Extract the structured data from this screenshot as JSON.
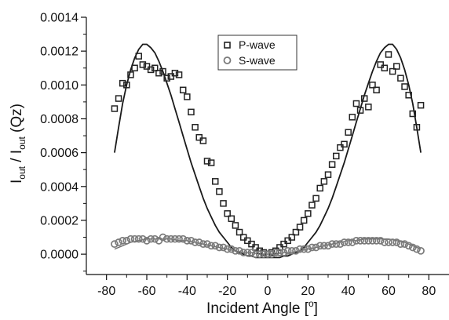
{
  "chart_data": {
    "type": "scatter",
    "xlabel": "Incident Angle [°]",
    "ylabel": "I_out / I_out (Qz)",
    "ylabel_parts": {
      "base1": "I",
      "sub1": "out",
      "mid": " / I",
      "sub2": "out",
      "tail": " (Qz)"
    },
    "xlabel_parts": {
      "main": "Incident Angle [",
      "sup": "o",
      "close": "]"
    },
    "xlim": [
      -90,
      90
    ],
    "ylim": [
      -0.00012,
      0.0014
    ],
    "x_ticks": [
      -80,
      -60,
      -40,
      -20,
      0,
      20,
      40,
      60,
      80
    ],
    "x_tick_labels": [
      "-80",
      "-60",
      "-40",
      "-20",
      "0",
      "20",
      "40",
      "60",
      "80"
    ],
    "y_ticks": [
      0.0,
      0.0002,
      0.0004,
      0.0006,
      0.0008,
      0.001,
      0.0012,
      0.0014
    ],
    "y_tick_labels": [
      "0.0000",
      "0.0002",
      "0.0004",
      "0.0006",
      "0.0008",
      "0.0010",
      "0.0012",
      "0.0014"
    ],
    "grid": false,
    "legend_position": "top-center",
    "series": [
      {
        "name": "P-wave",
        "kind": "points",
        "marker": "square",
        "points": [
          [
            -76,
            0.00086
          ],
          [
            -74,
            0.00092
          ],
          [
            -72,
            0.00101
          ],
          [
            -70,
            0.001
          ],
          [
            -68,
            0.00106
          ],
          [
            -66,
            0.0011
          ],
          [
            -64,
            0.00117
          ],
          [
            -62,
            0.00112
          ],
          [
            -60,
            0.00111
          ],
          [
            -58,
            0.00109
          ],
          [
            -56,
            0.0011
          ],
          [
            -54,
            0.00107
          ],
          [
            -52,
            0.00108
          ],
          [
            -50,
            0.00104
          ],
          [
            -48,
            0.00105
          ],
          [
            -46,
            0.00107
          ],
          [
            -44,
            0.00106
          ],
          [
            -42,
            0.00097
          ],
          [
            -40,
            0.00093
          ],
          [
            -38,
            0.00084
          ],
          [
            -36,
            0.00075
          ],
          [
            -34,
            0.00069
          ],
          [
            -32,
            0.00067
          ],
          [
            -30,
            0.00055
          ],
          [
            -28,
            0.00054
          ],
          [
            -26,
            0.00043
          ],
          [
            -24,
            0.00037
          ],
          [
            -22,
            0.0003
          ],
          [
            -20,
            0.00024
          ],
          [
            -18,
            0.00021
          ],
          [
            -16,
            0.00017
          ],
          [
            -14,
            0.00013
          ],
          [
            -12,
            0.0001
          ],
          [
            -10,
            8e-05
          ],
          [
            -8,
            6e-05
          ],
          [
            -6,
            4e-05
          ],
          [
            -4,
            2e-05
          ],
          [
            -2,
            1e-05
          ],
          [
            0,
            0.0
          ],
          [
            2,
            1e-05
          ],
          [
            4,
            2e-05
          ],
          [
            6,
            4e-05
          ],
          [
            8,
            6e-05
          ],
          [
            10,
            8e-05
          ],
          [
            12,
            0.0001
          ],
          [
            14,
            0.00013
          ],
          [
            16,
            0.00016
          ],
          [
            18,
            0.0002
          ],
          [
            20,
            0.00024
          ],
          [
            22,
            0.00029
          ],
          [
            24,
            0.00033
          ],
          [
            26,
            0.00039
          ],
          [
            28,
            0.00043
          ],
          [
            30,
            0.00047
          ],
          [
            32,
            0.00053
          ],
          [
            34,
            0.00058
          ],
          [
            36,
            0.00063
          ],
          [
            38,
            0.00065
          ],
          [
            40,
            0.00072
          ],
          [
            42,
            0.00081
          ],
          [
            44,
            0.00089
          ],
          [
            46,
            0.00085
          ],
          [
            48,
            0.00092
          ],
          [
            50,
            0.00087
          ],
          [
            52,
            0.001
          ],
          [
            54,
            0.00097
          ],
          [
            56,
            0.00112
          ],
          [
            58,
            0.0011
          ],
          [
            60,
            0.00118
          ],
          [
            62,
            0.00108
          ],
          [
            64,
            0.00111
          ],
          [
            66,
            0.00104
          ],
          [
            68,
            0.00099
          ],
          [
            70,
            0.00094
          ],
          [
            72,
            0.00083
          ],
          [
            74,
            0.00075
          ],
          [
            76,
            0.00088
          ]
        ]
      },
      {
        "name": "S-wave",
        "kind": "points",
        "marker": "circle",
        "points": [
          [
            -76,
            6e-05
          ],
          [
            -74,
            7e-05
          ],
          [
            -72,
            8e-05
          ],
          [
            -70,
            8e-05
          ],
          [
            -68,
            9e-05
          ],
          [
            -66,
            9e-05
          ],
          [
            -64,
            9e-05
          ],
          [
            -62,
            9e-05
          ],
          [
            -60,
            8e-05
          ],
          [
            -58,
            9e-05
          ],
          [
            -56,
            9e-05
          ],
          [
            -54,
            8e-05
          ],
          [
            -52,
            0.0001
          ],
          [
            -50,
            9e-05
          ],
          [
            -48,
            9e-05
          ],
          [
            -46,
            9e-05
          ],
          [
            -44,
            9e-05
          ],
          [
            -42,
            9e-05
          ],
          [
            -40,
            8e-05
          ],
          [
            -38,
            8e-05
          ],
          [
            -36,
            7e-05
          ],
          [
            -34,
            7e-05
          ],
          [
            -32,
            6e-05
          ],
          [
            -30,
            6e-05
          ],
          [
            -28,
            5e-05
          ],
          [
            -26,
            5e-05
          ],
          [
            -24,
            4e-05
          ],
          [
            -22,
            4e-05
          ],
          [
            -20,
            3e-05
          ],
          [
            -18,
            3e-05
          ],
          [
            -16,
            2e-05
          ],
          [
            -14,
            2e-05
          ],
          [
            -12,
            1e-05
          ],
          [
            -10,
            1e-05
          ],
          [
            -8,
            1e-05
          ],
          [
            -6,
            0.0
          ],
          [
            -4,
            0.0
          ],
          [
            -2,
            0.0
          ],
          [
            0,
            0.0
          ],
          [
            2,
            0.0
          ],
          [
            4,
            1e-05
          ],
          [
            6,
            1e-05
          ],
          [
            8,
            1e-05
          ],
          [
            10,
            2e-05
          ],
          [
            12,
            2e-05
          ],
          [
            14,
            2e-05
          ],
          [
            16,
            3e-05
          ],
          [
            18,
            3e-05
          ],
          [
            20,
            3e-05
          ],
          [
            22,
            4e-05
          ],
          [
            24,
            4e-05
          ],
          [
            26,
            5e-05
          ],
          [
            28,
            5e-05
          ],
          [
            30,
            5e-05
          ],
          [
            32,
            6e-05
          ],
          [
            34,
            6e-05
          ],
          [
            36,
            6e-05
          ],
          [
            38,
            7e-05
          ],
          [
            40,
            7e-05
          ],
          [
            42,
            7e-05
          ],
          [
            44,
            8e-05
          ],
          [
            46,
            8e-05
          ],
          [
            48,
            8e-05
          ],
          [
            50,
            8e-05
          ],
          [
            52,
            8e-05
          ],
          [
            54,
            8e-05
          ],
          [
            56,
            8e-05
          ],
          [
            58,
            7e-05
          ],
          [
            60,
            7e-05
          ],
          [
            62,
            7e-05
          ],
          [
            64,
            7e-05
          ],
          [
            66,
            6e-05
          ],
          [
            68,
            6e-05
          ],
          [
            70,
            5e-05
          ],
          [
            72,
            4e-05
          ],
          [
            74,
            3e-05
          ],
          [
            76,
            2e-05
          ]
        ]
      },
      {
        "kind": "curve",
        "style": "solid",
        "color": "#1a1a1a",
        "points": [
          [
            -76,
            0.0006
          ],
          [
            -74,
            0.00075
          ],
          [
            -72,
            0.00089
          ],
          [
            -70,
            0.001
          ],
          [
            -68,
            0.00109
          ],
          [
            -66,
            0.00116
          ],
          [
            -64,
            0.00121
          ],
          [
            -62,
            0.00124
          ],
          [
            -60,
            0.00124
          ],
          [
            -58,
            0.00122
          ],
          [
            -56,
            0.00119
          ],
          [
            -54,
            0.00114
          ],
          [
            -52,
            0.00108
          ],
          [
            -50,
            0.00101
          ],
          [
            -48,
            0.00094
          ],
          [
            -46,
            0.00086
          ],
          [
            -44,
            0.00078
          ],
          [
            -42,
            0.0007
          ],
          [
            -40,
            0.00062
          ],
          [
            -38,
            0.00054
          ],
          [
            -36,
            0.00047
          ],
          [
            -34,
            0.0004
          ],
          [
            -32,
            0.00033
          ],
          [
            -30,
            0.00027
          ],
          [
            -28,
            0.00022
          ],
          [
            -26,
            0.00017
          ],
          [
            -24,
            0.00013
          ],
          [
            -22,
            0.0001
          ],
          [
            -20,
            7e-05
          ],
          [
            -18,
            4e-05
          ],
          [
            -16,
            2e-05
          ],
          [
            -14,
            1e-05
          ],
          [
            -12,
            0.0
          ],
          [
            -10,
            -1e-05
          ],
          [
            -8,
            -1e-05
          ],
          [
            -6,
            -2e-05
          ],
          [
            -4,
            -2e-05
          ],
          [
            -2,
            -2e-05
          ],
          [
            0,
            -2e-05
          ],
          [
            2,
            -2e-05
          ],
          [
            4,
            -2e-05
          ],
          [
            6,
            -2e-05
          ],
          [
            8,
            -1e-05
          ],
          [
            10,
            -1e-05
          ],
          [
            12,
            0.0
          ],
          [
            14,
            1e-05
          ],
          [
            16,
            2e-05
          ],
          [
            18,
            4e-05
          ],
          [
            20,
            7e-05
          ],
          [
            22,
            0.0001
          ],
          [
            24,
            0.00013
          ],
          [
            26,
            0.00017
          ],
          [
            28,
            0.00022
          ],
          [
            30,
            0.00027
          ],
          [
            32,
            0.00033
          ],
          [
            34,
            0.0004
          ],
          [
            36,
            0.00047
          ],
          [
            38,
            0.00054
          ],
          [
            40,
            0.00062
          ],
          [
            42,
            0.0007
          ],
          [
            44,
            0.00078
          ],
          [
            46,
            0.00086
          ],
          [
            48,
            0.00094
          ],
          [
            50,
            0.00101
          ],
          [
            52,
            0.00108
          ],
          [
            54,
            0.00114
          ],
          [
            56,
            0.00119
          ],
          [
            58,
            0.00122
          ],
          [
            60,
            0.00124
          ],
          [
            62,
            0.00124
          ],
          [
            64,
            0.00121
          ],
          [
            66,
            0.00116
          ],
          [
            68,
            0.00109
          ],
          [
            70,
            0.001
          ],
          [
            72,
            0.00089
          ],
          [
            74,
            0.00075
          ],
          [
            76,
            0.0006
          ]
        ]
      },
      {
        "kind": "curve",
        "style": "solid",
        "color": "#6e6e6e",
        "points": [
          [
            -76,
            3e-05
          ],
          [
            -72,
            5e-05
          ],
          [
            -68,
            7e-05
          ],
          [
            -64,
            8e-05
          ],
          [
            -60,
            9e-05
          ],
          [
            -56,
            9e-05
          ],
          [
            -52,
            9e-05
          ],
          [
            -48,
            9e-05
          ],
          [
            -44,
            8e-05
          ],
          [
            -40,
            8e-05
          ],
          [
            -36,
            7e-05
          ],
          [
            -32,
            6e-05
          ],
          [
            -28,
            5e-05
          ],
          [
            -24,
            4e-05
          ],
          [
            -20,
            3e-05
          ],
          [
            -16,
            2e-05
          ],
          [
            -12,
            1e-05
          ],
          [
            -8,
            1e-05
          ],
          [
            -4,
            0.0
          ],
          [
            0,
            0.0
          ],
          [
            4,
            0.0
          ],
          [
            8,
            1e-05
          ],
          [
            12,
            1e-05
          ],
          [
            16,
            2e-05
          ],
          [
            20,
            3e-05
          ],
          [
            24,
            4e-05
          ],
          [
            28,
            5e-05
          ],
          [
            32,
            6e-05
          ],
          [
            36,
            7e-05
          ],
          [
            40,
            8e-05
          ],
          [
            44,
            8e-05
          ],
          [
            48,
            9e-05
          ],
          [
            52,
            9e-05
          ],
          [
            56,
            9e-05
          ],
          [
            60,
            9e-05
          ],
          [
            64,
            8e-05
          ],
          [
            68,
            7e-05
          ],
          [
            72,
            5e-05
          ],
          [
            76,
            3e-05
          ]
        ]
      }
    ],
    "colors": {
      "axis": "#111111",
      "p_marker": "#222222",
      "s_marker": "#7a7a7a",
      "fit_p": "#1a1a1a",
      "fit_s": "#6e6e6e"
    }
  }
}
